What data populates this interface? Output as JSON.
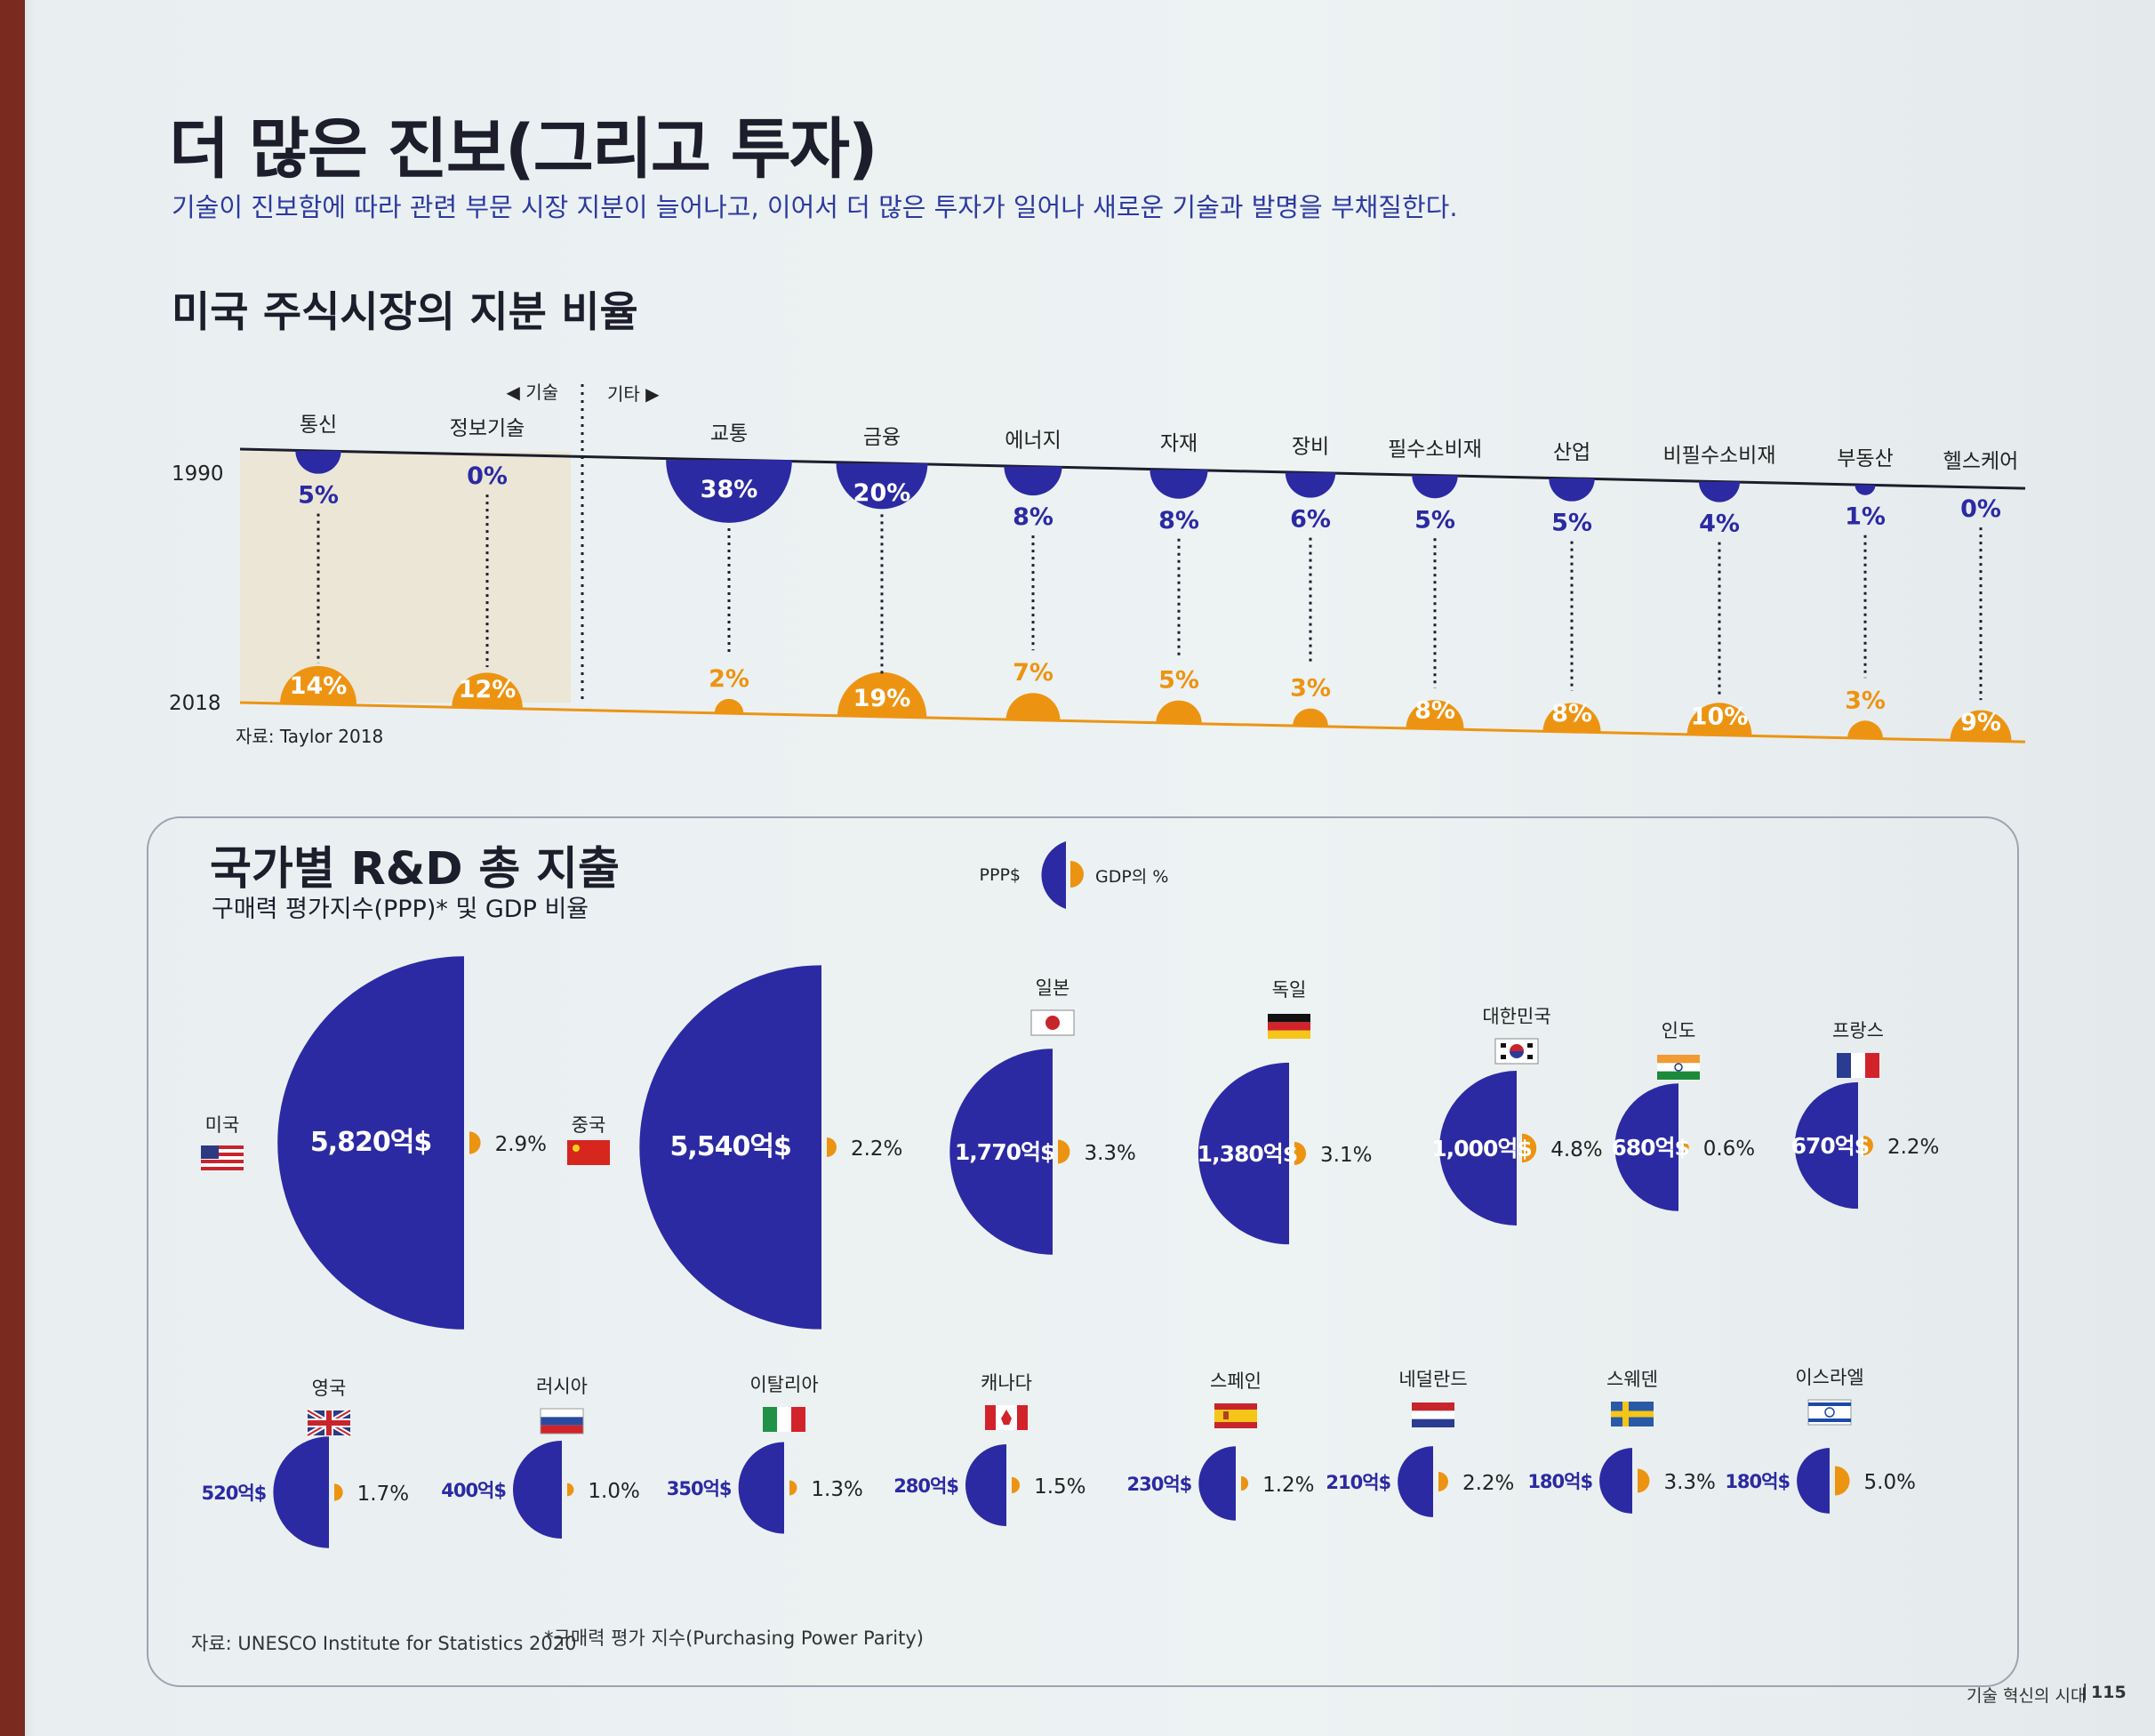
{
  "header": {
    "title": "더 많은 진보(그리고 투자)",
    "subtitle": "기술이 진보함에 따라 관련 부문 시장 지분이 늘어나고, 이어서 더 많은 투자가 일어나 새로운 기술과 발명을 부채질한다."
  },
  "colors": {
    "navy": "#2b2aa3",
    "orange": "#ec9412",
    "tech_bg": "#ece6d6"
  },
  "section1": {
    "title": "미국 주식시장의 지분 비율",
    "tech_label": "◀ 기술",
    "other_label": "기타 ▶",
    "source": "자료: Taylor 2018"
  },
  "section2": {
    "title": "국가별 R&D 총 지출",
    "subtitle": "구매력 평가지수(PPP)* 및 GDP 비율",
    "legend_ppp": "PPP$",
    "legend_gdp": "GDP의 %",
    "source": "자료: UNESCO Institute for Statistics 2020",
    "footnote": "*구매력 평가 지수(Purchasing Power Parity)"
  },
  "footer": {
    "text": "기술 혁신의 시대",
    "separator": "|",
    "page": "115"
  },
  "chart_data": [
    {
      "type": "bar",
      "title": "미국 주식시장의 지분 비율",
      "x_labels": [
        "1990",
        "2018"
      ],
      "categories": [
        "통신",
        "정보기술",
        "교통",
        "금융",
        "에너지",
        "자재",
        "장비",
        "필수소비재",
        "산업",
        "비필수소비재",
        "부동산",
        "헬스케어"
      ],
      "series": [
        {
          "name": "1990",
          "values": [
            5,
            0,
            38,
            20,
            8,
            8,
            6,
            5,
            5,
            4,
            1,
            0
          ]
        },
        {
          "name": "2018",
          "values": [
            14,
            12,
            2,
            19,
            7,
            5,
            3,
            8,
            8,
            10,
            3,
            9
          ]
        }
      ],
      "value_labels": {
        "1990": [
          "5%",
          "0%",
          "38%",
          "20%",
          "8%",
          "8%",
          "6%",
          "5%",
          "5%",
          "4%",
          "1%",
          "0%"
        ],
        "2018": [
          "14%",
          "12%",
          "2%",
          "19%",
          "7%",
          "5%",
          "3%",
          "8%",
          "8%",
          "10%",
          "3%",
          "9%"
        ]
      },
      "groups": {
        "기술": [
          "통신",
          "정보기술"
        ],
        "기타": [
          "교통",
          "금융",
          "에너지",
          "자재",
          "장비",
          "필수소비재",
          "산업",
          "비필수소비재",
          "부동산",
          "헬스케어"
        ]
      }
    },
    {
      "type": "scatter",
      "title": "국가별 R&D 총 지출",
      "countries": [
        "미국",
        "중국",
        "일본",
        "독일",
        "대한민국",
        "인도",
        "프랑스",
        "영국",
        "러시아",
        "이탈리아",
        "캐나다",
        "스페인",
        "네덜란드",
        "스웨덴",
        "이스라엘"
      ],
      "ppp_billion_won_units": [
        5820,
        5540,
        1770,
        1380,
        1000,
        680,
        670,
        520,
        400,
        350,
        280,
        230,
        210,
        180,
        180
      ],
      "ppp_labels": [
        "5,820억$",
        "5,540억$",
        "1,770억$",
        "1,380억$",
        "1,000억$",
        "680억$",
        "670억$",
        "520억$",
        "400억$",
        "350억$",
        "280억$",
        "230억$",
        "210억$",
        "180억$",
        "180억$"
      ],
      "gdp_pct": [
        2.9,
        2.2,
        3.3,
        3.1,
        4.8,
        0.6,
        2.2,
        1.7,
        1.0,
        1.3,
        1.5,
        1.2,
        2.2,
        3.3,
        5.0
      ],
      "gdp_labels": [
        "2.9%",
        "2.2%",
        "3.3%",
        "3.1%",
        "4.8%",
        "0.6%",
        "2.2%",
        "1.7%",
        "1.0%",
        "1.3%",
        "1.5%",
        "1.2%",
        "2.2%",
        "3.3%",
        "5.0%"
      ]
    }
  ]
}
